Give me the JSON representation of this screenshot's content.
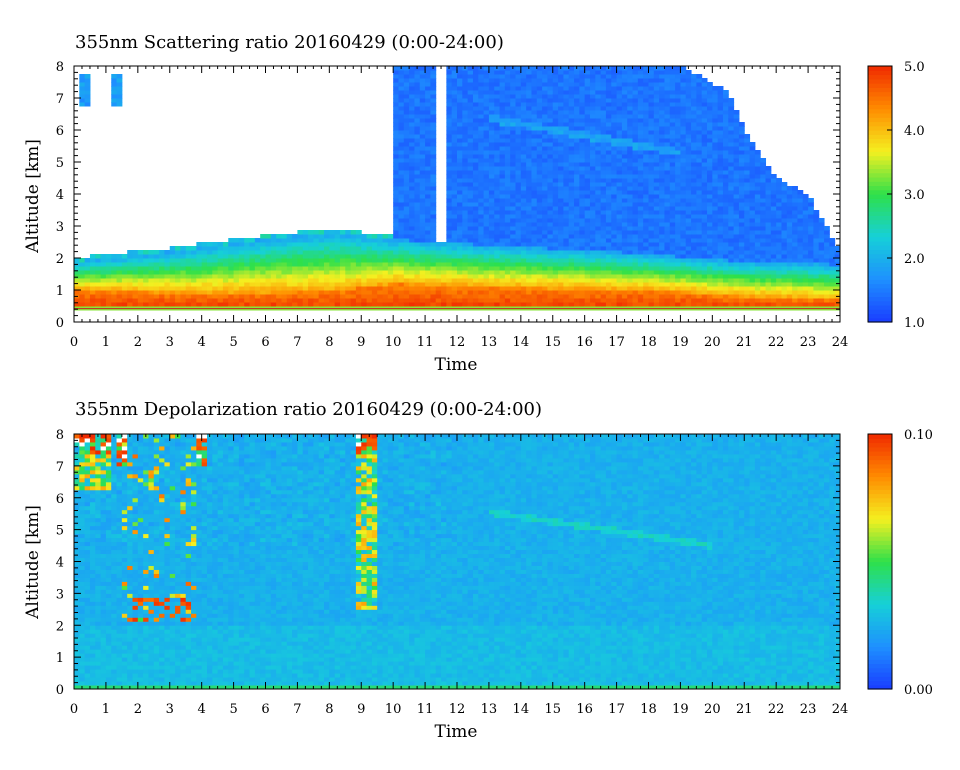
{
  "chart_data": [
    {
      "type": "heatmap",
      "title": "355nm Scattering ratio  20160429 (0:00-24:00)",
      "xlabel": "Time",
      "ylabel": "Altitude [km]",
      "xlim": [
        0,
        24
      ],
      "ylim": [
        0,
        8
      ],
      "x_ticks": [
        "0",
        "1",
        "2",
        "3",
        "4",
        "5",
        "6",
        "7",
        "8",
        "9",
        "10",
        "11",
        "12",
        "13",
        "14",
        "15",
        "16",
        "17",
        "18",
        "19",
        "20",
        "21",
        "22",
        "23",
        "24"
      ],
      "y_ticks": [
        "0",
        "1",
        "2",
        "3",
        "4",
        "5",
        "6",
        "7",
        "8"
      ],
      "colorbar": {
        "min": 1.0,
        "max": 5.0,
        "tick_labels": [
          "1.0",
          "2.0",
          "3.0",
          "4.0",
          "5.0"
        ],
        "tick_values": [
          1.0,
          2.0,
          3.0,
          4.0,
          5.0
        ],
        "colors": [
          "#1a3cff",
          "#1e90ff",
          "#16d0d8",
          "#2ee04a",
          "#f4f020",
          "#ff8c00",
          "#f02a00"
        ]
      },
      "features": {
        "aerosol_layer_top_km": [
          [
            0,
            1.9
          ],
          [
            3,
            2.2
          ],
          [
            6,
            2.6
          ],
          [
            8,
            2.8
          ],
          [
            10,
            2.6
          ],
          [
            13,
            2.4
          ],
          [
            17,
            2.2
          ],
          [
            21,
            1.9
          ],
          [
            24,
            1.8
          ]
        ],
        "high_value_layer_top_km": [
          [
            0,
            1.0
          ],
          [
            4,
            0.9
          ],
          [
            8,
            0.95
          ],
          [
            10,
            1.2
          ],
          [
            13,
            1.1
          ],
          [
            18,
            1.0
          ],
          [
            21,
            0.8
          ],
          [
            24,
            0.7
          ]
        ],
        "cloud_top_km": [
          [
            10,
            8.0
          ],
          [
            15,
            8.0
          ],
          [
            19,
            8.0
          ],
          [
            20.5,
            7.2
          ],
          [
            21,
            6.0
          ],
          [
            22,
            4.5
          ],
          [
            23,
            4.0
          ],
          [
            24,
            2.2
          ]
        ]
      }
    },
    {
      "type": "heatmap",
      "title": "355nm Depolarization ratio  20160429 (0:00-24:00)",
      "xlabel": "Time",
      "ylabel": "Altitude [km]",
      "xlim": [
        0,
        24
      ],
      "ylim": [
        0,
        8
      ],
      "x_ticks": [
        "0",
        "1",
        "2",
        "3",
        "4",
        "5",
        "6",
        "7",
        "8",
        "9",
        "10",
        "11",
        "12",
        "13",
        "14",
        "15",
        "16",
        "17",
        "18",
        "19",
        "20",
        "21",
        "22",
        "23",
        "24"
      ],
      "y_ticks": [
        "0",
        "1",
        "2",
        "3",
        "4",
        "5",
        "6",
        "7",
        "8"
      ],
      "colorbar": {
        "min": 0.0,
        "max": 0.1,
        "tick_labels": [
          "0.00",
          "0.10"
        ],
        "tick_values": [
          0.0,
          0.1
        ],
        "colors": [
          "#1a3cff",
          "#1e90ff",
          "#16d0d8",
          "#2ee04a",
          "#f4f020",
          "#ff8c00",
          "#f02a00"
        ]
      },
      "features": {
        "background_value": 0.025,
        "high_depol_regions": [
          {
            "t": [
              0,
              1.2
            ],
            "alt": [
              6.3,
              8
            ]
          },
          {
            "t": [
              1.3,
              1.6
            ],
            "alt": [
              7,
              8
            ]
          },
          {
            "t": [
              3.8,
              4.1
            ],
            "alt": [
              7,
              8
            ]
          },
          {
            "t": [
              8.8,
              9.5
            ],
            "alt": [
              2.5,
              8
            ]
          }
        ]
      }
    }
  ]
}
